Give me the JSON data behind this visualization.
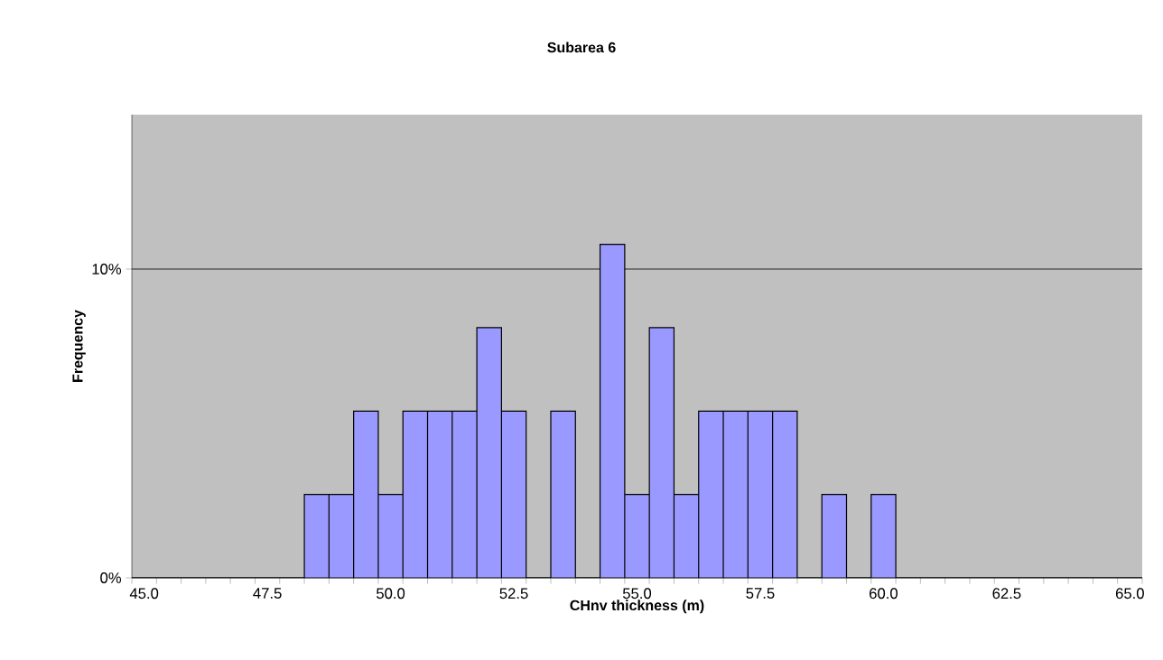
{
  "chart_data": {
    "type": "bar",
    "title": "Subarea 6",
    "xlabel": "CHnv thickness (m)",
    "ylabel": "Frequency",
    "categories": [
      "45.0",
      null,
      null,
      null,
      null,
      "47.5",
      null,
      null,
      null,
      null,
      "50.0",
      null,
      null,
      null,
      null,
      "52.5",
      null,
      null,
      null,
      null,
      "55.0",
      null,
      null,
      null,
      null,
      "57.5",
      null,
      null,
      null,
      null,
      "60.0",
      null,
      null,
      null,
      null,
      "62.5",
      null,
      null,
      null,
      null,
      "65.0"
    ],
    "values": [
      0,
      0,
      0,
      0,
      0,
      0,
      0,
      2.7,
      2.7,
      5.4,
      2.7,
      5.4,
      5.4,
      5.4,
      8.1,
      5.4,
      0,
      5.4,
      0,
      10.8,
      2.7,
      8.1,
      2.7,
      5.4,
      5.4,
      5.4,
      5.4,
      0,
      2.7,
      0,
      2.7,
      0,
      0,
      0,
      0,
      0,
      0,
      0,
      0,
      0,
      0
    ],
    "color": "#9999ff",
    "ylim": [
      0,
      15
    ],
    "yticks": [
      {
        "value": 0,
        "label": "0%"
      },
      {
        "value": 10,
        "label": "10%"
      }
    ],
    "grid": "y"
  }
}
